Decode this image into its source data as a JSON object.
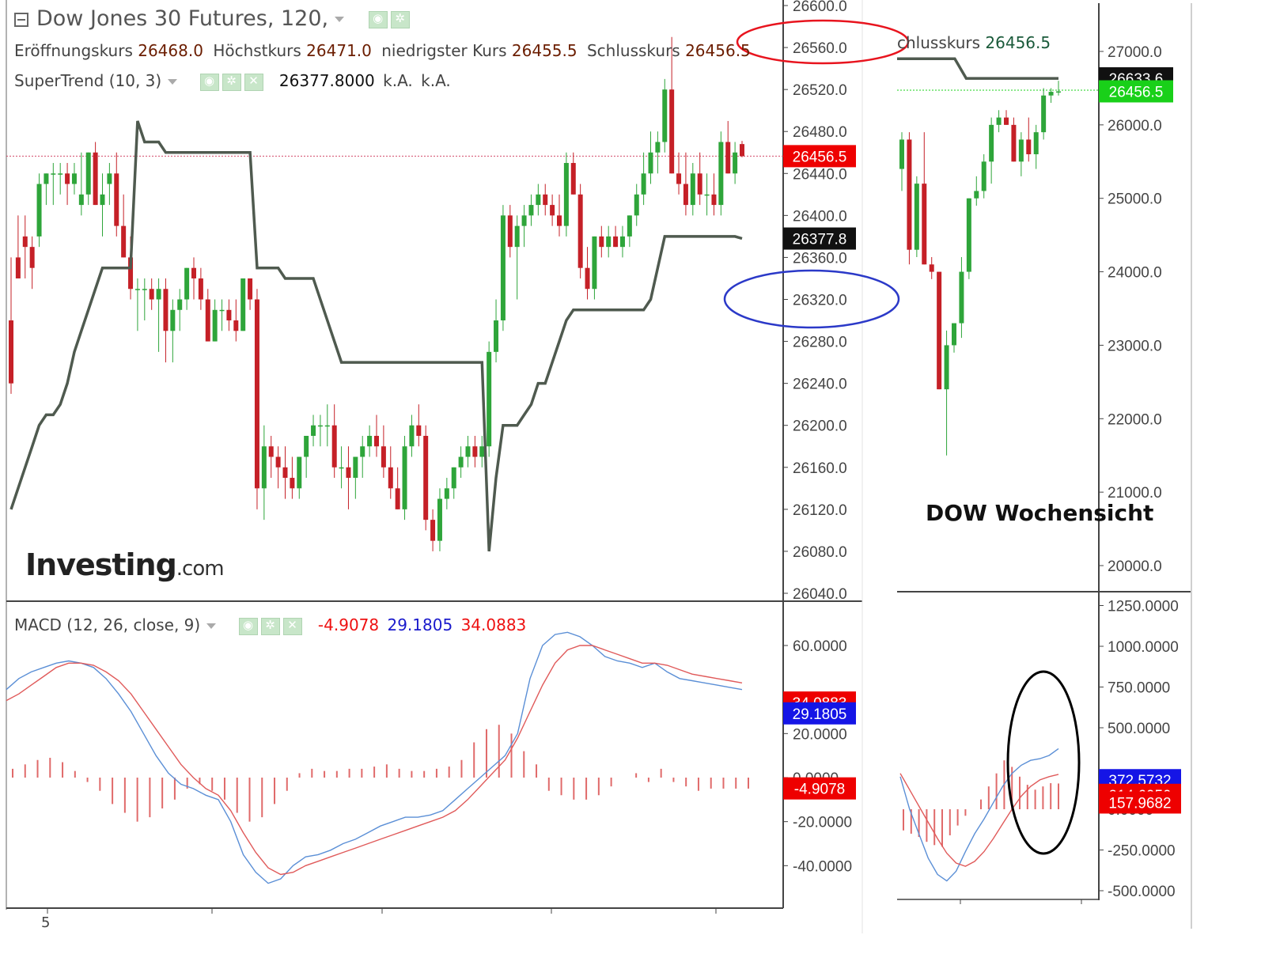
{
  "main_panel": {
    "title": "Dow Jones 30 Futures, 120,",
    "ohlc": [
      {
        "label": "Eröffnungskurs",
        "value": "26468.0"
      },
      {
        "label": "Höchstkurs",
        "value": "26471.0"
      },
      {
        "label": "niedrigster Kurs",
        "value": "26455.5"
      },
      {
        "label": "Schlusskurs",
        "value": "26456.5"
      }
    ],
    "supertrend": {
      "label": "SuperTrend (10, 3)",
      "value": "26377.8000",
      "na1": "k.A.",
      "na2": "k.A."
    },
    "watermark": {
      "brand": "Investing",
      "suffix": ".com"
    },
    "y_ticks": [
      "26600.0",
      "26560.0",
      "26520.0",
      "26480.0",
      "26440.0",
      "26400.0",
      "26360.0",
      "26320.0",
      "26280.0",
      "26240.0",
      "26200.0",
      "26160.0",
      "26120.0",
      "26080.0",
      "26040.0"
    ],
    "price_badge": "26456.5",
    "supertrend_badge": "26377.8",
    "x_label": "5"
  },
  "macd_panel": {
    "label": "MACD (12, 26, close, 9)",
    "values": [
      "-4.9078",
      "29.1805",
      "34.0883"
    ],
    "y_ticks": [
      "60.0000",
      "20.0000",
      "0.0000",
      "-20.0000",
      "-40.0000"
    ],
    "badges": [
      "34.0883",
      "29.1805",
      "-4.9078"
    ]
  },
  "weekly_panel": {
    "header_partial": "chlusskurs",
    "header_value": "26456.5",
    "caption": "DOW Wochensicht",
    "y_ticks": [
      "27000.0",
      "26000.0",
      "25000.0",
      "24000.0",
      "23000.0",
      "22000.0",
      "21000.0",
      "20000.0"
    ],
    "badge_supertrend": "26633.6",
    "badge_price": "26456.5",
    "macd_ticks": [
      "1250.0000",
      "1000.0000",
      "750.0000",
      "500.0000",
      "0.0000",
      "-250.0000",
      "-500.0000"
    ],
    "macd_badges": [
      "372.5732",
      "214.6050",
      "157.9682"
    ]
  },
  "colors": {
    "up": "#2ea53a",
    "down": "#c52027",
    "supertrend": "#4f5a4f",
    "macd_line": "#5b8fd6",
    "signal_line": "#e05a5a",
    "hist": "#e06a6a",
    "badge_red": "#ee0000",
    "badge_blue": "#1515e6",
    "badge_black": "#111111",
    "badge_green": "#19d019",
    "circle_red": "#e8141e",
    "circle_blue": "#2b39c8",
    "circle_black": "#000000"
  },
  "chart_data": [
    {
      "type": "candlestick",
      "title": "Dow Jones 30 Futures, 120,",
      "ylim": [
        26040,
        26600
      ],
      "candles": [
        [
          26300,
          26360,
          26230,
          26240
        ],
        [
          26360,
          26400,
          26340,
          26340
        ],
        [
          26380,
          26400,
          26340,
          26370
        ],
        [
          26370,
          26380,
          26330,
          26350
        ],
        [
          26380,
          26440,
          26370,
          26430
        ],
        [
          26430,
          26440,
          26410,
          26440
        ],
        [
          26440,
          26450,
          26410,
          26440
        ],
        [
          26440,
          26450,
          26420,
          26440
        ],
        [
          26440,
          26450,
          26410,
          26430
        ],
        [
          26430,
          26450,
          26420,
          26440
        ],
        [
          26410,
          26460,
          26400,
          26420
        ],
        [
          26420,
          26460,
          26410,
          26460
        ],
        [
          26460,
          26470,
          26410,
          26410
        ],
        [
          26410,
          26440,
          26380,
          26420
        ],
        [
          26430,
          26450,
          26410,
          26440
        ],
        [
          26440,
          26460,
          26380,
          26390
        ],
        [
          26390,
          26420,
          26360,
          26360
        ],
        [
          26360,
          26380,
          26320,
          26330
        ],
        [
          26330,
          26340,
          26290,
          26330
        ],
        [
          26330,
          26340,
          26300,
          26330
        ],
        [
          26330,
          26340,
          26310,
          26320
        ],
        [
          26320,
          26340,
          26270,
          26330
        ],
        [
          26330,
          26340,
          26260,
          26290
        ],
        [
          26290,
          26320,
          26260,
          26310
        ],
        [
          26310,
          26330,
          26290,
          26320
        ],
        [
          26320,
          26350,
          26310,
          26350
        ],
        [
          26350,
          26360,
          26320,
          26340
        ],
        [
          26340,
          26350,
          26310,
          26320
        ],
        [
          26320,
          26330,
          26280,
          26280
        ],
        [
          26280,
          26320,
          26280,
          26310
        ],
        [
          26310,
          26320,
          26290,
          26310
        ],
        [
          26310,
          26320,
          26290,
          26300
        ],
        [
          26300,
          26320,
          26280,
          26290
        ],
        [
          26290,
          26340,
          26290,
          26340
        ],
        [
          26340,
          26340,
          26310,
          26320
        ],
        [
          26320,
          26330,
          26120,
          26140
        ],
        [
          26140,
          26200,
          26110,
          26180
        ],
        [
          26180,
          26190,
          26150,
          26170
        ],
        [
          26170,
          26180,
          26140,
          26160
        ],
        [
          26160,
          26180,
          26130,
          26150
        ],
        [
          26150,
          26170,
          26130,
          26140
        ],
        [
          26140,
          26170,
          26130,
          26170
        ],
        [
          26170,
          26190,
          26150,
          26190
        ],
        [
          26190,
          26210,
          26180,
          26200
        ],
        [
          26200,
          26210,
          26180,
          26200
        ],
        [
          26200,
          26220,
          26180,
          26200
        ],
        [
          26200,
          26220,
          26150,
          26160
        ],
        [
          26160,
          26180,
          26140,
          26160
        ],
        [
          26160,
          26180,
          26120,
          26150
        ],
        [
          26150,
          26170,
          26130,
          26170
        ],
        [
          26170,
          26190,
          26150,
          26180
        ],
        [
          26180,
          26200,
          26170,
          26190
        ],
        [
          26190,
          26210,
          26170,
          26180
        ],
        [
          26180,
          26200,
          26150,
          26160
        ],
        [
          26160,
          26180,
          26130,
          26140
        ],
        [
          26140,
          26160,
          26120,
          26120
        ],
        [
          26120,
          26190,
          26110,
          26180
        ],
        [
          26180,
          26210,
          26170,
          26200
        ],
        [
          26200,
          26220,
          26180,
          26190
        ],
        [
          26190,
          26200,
          26100,
          26110
        ],
        [
          26110,
          26120,
          26080,
          26090
        ],
        [
          26090,
          26140,
          26080,
          26130
        ],
        [
          26130,
          26150,
          26120,
          26140
        ],
        [
          26140,
          26160,
          26130,
          26160
        ],
        [
          26160,
          26180,
          26150,
          26170
        ],
        [
          26170,
          26190,
          26160,
          26180
        ],
        [
          26180,
          26190,
          26160,
          26170
        ],
        [
          26170,
          26190,
          26160,
          26180
        ],
        [
          26180,
          26280,
          26170,
          26270
        ],
        [
          26270,
          26320,
          26260,
          26300
        ],
        [
          26300,
          26410,
          26290,
          26400
        ],
        [
          26400,
          26410,
          26360,
          26370
        ],
        [
          26370,
          26400,
          26320,
          26390
        ],
        [
          26390,
          26410,
          26370,
          26400
        ],
        [
          26400,
          26420,
          26390,
          26410
        ],
        [
          26410,
          26430,
          26400,
          26420
        ],
        [
          26420,
          26430,
          26400,
          26410
        ],
        [
          26410,
          26420,
          26390,
          26400
        ],
        [
          26400,
          26420,
          26380,
          26390
        ],
        [
          26390,
          26460,
          26380,
          26450
        ],
        [
          26450,
          26460,
          26420,
          26420
        ],
        [
          26420,
          26430,
          26340,
          26350
        ],
        [
          26350,
          26370,
          26320,
          26330
        ],
        [
          26330,
          26380,
          26320,
          26380
        ],
        [
          26380,
          26390,
          26360,
          26370
        ],
        [
          26370,
          26390,
          26360,
          26380
        ],
        [
          26380,
          26390,
          26370,
          26370
        ],
        [
          26370,
          26390,
          26360,
          26380
        ],
        [
          26380,
          26400,
          26370,
          26400
        ],
        [
          26400,
          26430,
          26390,
          26420
        ],
        [
          26420,
          26460,
          26410,
          26440
        ],
        [
          26440,
          26480,
          26430,
          26460
        ],
        [
          26460,
          26480,
          26440,
          26470
        ],
        [
          26470,
          26530,
          26460,
          26520
        ],
        [
          26520,
          26570,
          26440,
          26440
        ],
        [
          26440,
          26460,
          26420,
          26430
        ],
        [
          26430,
          26460,
          26400,
          26410
        ],
        [
          26410,
          26450,
          26400,
          26440
        ],
        [
          26440,
          26460,
          26410,
          26420
        ],
        [
          26420,
          26440,
          26400,
          26420
        ],
        [
          26420,
          26440,
          26400,
          26410
        ],
        [
          26410,
          26480,
          26400,
          26470
        ],
        [
          26470,
          26490,
          26440,
          26440
        ],
        [
          26440,
          26470,
          26430,
          26460
        ],
        [
          26468,
          26471,
          26455.5,
          26456.5
        ]
      ],
      "supertrend": [
        26120,
        26140,
        26160,
        26180,
        26200,
        26210,
        26210,
        26220,
        26240,
        26270,
        26290,
        26310,
        26330,
        26350,
        26350,
        26350,
        26350,
        26350,
        26490,
        26470,
        26470,
        26470,
        26460,
        26460,
        26460,
        26460,
        26460,
        26460,
        26460,
        26460,
        26460,
        26460,
        26460,
        26460,
        26460,
        26350,
        26350,
        26350,
        26350,
        26340,
        26340,
        26340,
        26340,
        26340,
        26320,
        26300,
        26280,
        26260,
        26260,
        26260,
        26260,
        26260,
        26260,
        26260,
        26260,
        26260,
        26260,
        26260,
        26260,
        26260,
        26260,
        26260,
        26260,
        26260,
        26260,
        26260,
        26260,
        26260,
        26080,
        26150,
        26200,
        26200,
        26200,
        26210,
        26220,
        26240,
        26240,
        26260,
        26280,
        26300,
        26310,
        26310,
        26310,
        26310,
        26310,
        26310,
        26310,
        26310,
        26310,
        26310,
        26310,
        26320,
        26350,
        26380,
        26380,
        26380,
        26380,
        26380,
        26380,
        26380,
        26380,
        26380,
        26380,
        26380,
        26378
      ]
    },
    {
      "type": "line",
      "title": "MACD (12, 26, close, 9)",
      "ylim": [
        -50,
        70
      ],
      "series": [
        {
          "name": "MACD",
          "values": [
            40,
            45,
            48,
            50,
            52,
            53,
            52,
            50,
            45,
            38,
            30,
            20,
            10,
            2,
            -3,
            -5,
            -8,
            -10,
            -20,
            -35,
            -43,
            -48,
            -46,
            -40,
            -36,
            -35,
            -33,
            -30,
            -28,
            -25,
            -22,
            -20,
            -18,
            -18,
            -17,
            -15,
            -10,
            -5,
            0,
            5,
            10,
            20,
            45,
            60,
            65,
            66,
            64,
            60,
            55,
            53,
            52,
            50,
            52,
            48,
            45,
            44,
            43,
            42,
            41,
            40
          ]
        },
        {
          "name": "Signal",
          "values": [
            35,
            38,
            42,
            46,
            50,
            52,
            52,
            51,
            48,
            44,
            38,
            30,
            22,
            14,
            6,
            0,
            -5,
            -8,
            -15,
            -25,
            -34,
            -41,
            -44,
            -43,
            -40,
            -38,
            -36,
            -34,
            -32,
            -30,
            -28,
            -26,
            -24,
            -22,
            -20,
            -18,
            -15,
            -10,
            -4,
            2,
            8,
            18,
            30,
            42,
            52,
            58,
            60,
            60,
            58,
            56,
            54,
            52,
            52,
            51,
            49,
            47,
            46,
            45,
            44,
            43
          ]
        }
      ],
      "histogram": [
        4,
        6,
        8,
        9,
        7,
        3,
        -2,
        -6,
        -12,
        -16,
        -20,
        -18,
        -14,
        -10,
        -5,
        -3,
        -6,
        -10,
        -16,
        -20,
        -18,
        -12,
        -6,
        2,
        4,
        3,
        3,
        4,
        4,
        5,
        6,
        4,
        3,
        3,
        4,
        5,
        8,
        16,
        22,
        24,
        20,
        12,
        6,
        -6,
        -8,
        -10,
        -10,
        -8,
        -4,
        0,
        2,
        -2,
        4,
        -2,
        -4,
        -6,
        -5,
        -5,
        -5,
        -5
      ]
    },
    {
      "type": "candlestick",
      "title": "DOW Wochensicht",
      "ylim": [
        19700,
        27600
      ],
      "candles": [
        [
          25400,
          25900,
          25100,
          25800
        ],
        [
          25800,
          25900,
          24100,
          24300
        ],
        [
          24300,
          25300,
          24200,
          25200
        ],
        [
          25200,
          25900,
          24100,
          24100
        ],
        [
          24100,
          24200,
          23900,
          24000
        ],
        [
          24000,
          24000,
          22400,
          22400
        ],
        [
          22400,
          23200,
          21500,
          23000
        ],
        [
          23000,
          23300,
          22900,
          23300
        ],
        [
          23300,
          24200,
          23100,
          24000
        ],
        [
          24000,
          25000,
          23900,
          25000
        ],
        [
          25000,
          25300,
          24900,
          25100
        ],
        [
          25100,
          25600,
          25000,
          25500
        ],
        [
          25500,
          26100,
          25200,
          26000
        ],
        [
          26000,
          26200,
          25900,
          26100
        ],
        [
          26100,
          26200,
          26000,
          26000
        ],
        [
          26000,
          26100,
          25500,
          25500
        ],
        [
          25500,
          25900,
          25300,
          25800
        ],
        [
          25800,
          26100,
          25500,
          25600
        ],
        [
          25600,
          26000,
          25400,
          25900
        ],
        [
          25900,
          26500,
          25800,
          26400
        ],
        [
          26400,
          26500,
          26300,
          26450
        ],
        [
          26450,
          26600,
          26400,
          26456
        ]
      ],
      "supertrend": [
        26900,
        26900,
        26900,
        26900,
        26900,
        26900,
        26633,
        26633,
        26633,
        26633,
        26633,
        26633,
        26633,
        26633,
        26633
      ]
    }
  ]
}
